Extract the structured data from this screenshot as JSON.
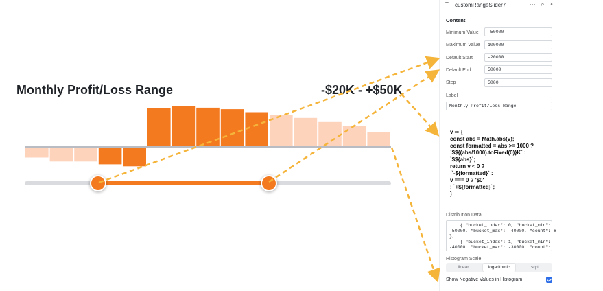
{
  "preview": {
    "title": "Monthly Profit/Loss Range",
    "range_readout": "-$20K - +$50K",
    "selected_start": -20000,
    "selected_end": 50000
  },
  "chart_data": {
    "type": "bar",
    "note_scale": "logarithmic",
    "show_negative": true,
    "min": -50000,
    "max": 100000,
    "buckets": [
      {
        "bucket_min": -50000,
        "bucket_max": -40000,
        "value": -0.25,
        "selected": false
      },
      {
        "bucket_min": -40000,
        "bucket_max": -30000,
        "value": -0.35,
        "selected": false
      },
      {
        "bucket_min": -30000,
        "bucket_max": -20000,
        "value": -0.35,
        "selected": false
      },
      {
        "bucket_min": -20000,
        "bucket_max": -10000,
        "value": -0.42,
        "selected": true
      },
      {
        "bucket_min": -10000,
        "bucket_max": 0,
        "value": -0.47,
        "selected": true
      },
      {
        "bucket_min": 0,
        "bucket_max": 10000,
        "value": 1.0,
        "selected": true
      },
      {
        "bucket_min": 10000,
        "bucket_max": 20000,
        "value": 1.07,
        "selected": true
      },
      {
        "bucket_min": 20000,
        "bucket_max": 30000,
        "value": 1.02,
        "selected": true
      },
      {
        "bucket_min": 30000,
        "bucket_max": 40000,
        "value": 0.98,
        "selected": true
      },
      {
        "bucket_min": 40000,
        "bucket_max": 50000,
        "value": 0.9,
        "selected": true
      },
      {
        "bucket_min": 50000,
        "bucket_max": 60000,
        "value": 0.83,
        "selected": false
      },
      {
        "bucket_min": 60000,
        "bucket_max": 70000,
        "value": 0.75,
        "selected": false
      },
      {
        "bucket_min": 70000,
        "bucket_max": 80000,
        "value": 0.64,
        "selected": false
      },
      {
        "bucket_min": 80000,
        "bucket_max": 90000,
        "value": 0.53,
        "selected": false
      },
      {
        "bucket_min": 90000,
        "bucket_max": 100000,
        "value": 0.38,
        "selected": false
      }
    ]
  },
  "colors": {
    "accent": "#f47a20",
    "muted_bar": "#fdd3bc",
    "track": "#d9dbde",
    "arrow": "#f5b43a"
  },
  "panel": {
    "header": {
      "icon": "text-icon",
      "icon_glyph": "T",
      "title": "customRangeSlider7",
      "more_glyph": "⋯",
      "search_glyph": "⌕",
      "close_glyph": "×"
    },
    "section_title": "Content",
    "fields": [
      {
        "label": "Minimum Value",
        "value": "-50000"
      },
      {
        "label": "Maximum Value",
        "value": "100000"
      },
      {
        "label": "Default Start",
        "value": "-20000"
      },
      {
        "label": "Default End",
        "value": "50000"
      },
      {
        "label": "Step",
        "value": "5000"
      }
    ],
    "label_field": {
      "label": "Label",
      "value": "Monthly Profit/Loss Range"
    },
    "formatter_code": "v ⇒ {\nconst abs = Math.abs(v);\nconst formatted = abs >= 1000 ?\n`$${(abs/1000).toFixed(0)}K` :\n`$${abs}`;\nreturn v < 0 ?\n `-${formatted}` :\nv === 0 ? '$0'\n: `+${formatted}`;\n}",
    "distribution": {
      "label": "Distribution Data",
      "text": "    { \"bucket_index\": 0, \"bucket_min\":\n-50000, \"bucket_max\": -40000, \"count\": 8\n},\n    { \"bucket_index\": 1, \"bucket_min\":\n-40000, \"bucket_max\": -30000, \"count\":"
    },
    "histogram_scale": {
      "label": "Histogram Scale",
      "options": [
        "linear",
        "logarithmic",
        "sqrt"
      ],
      "selected": "logarithmic"
    },
    "show_negative": {
      "label": "Show Negative Values in Histogram",
      "checked": true
    }
  }
}
